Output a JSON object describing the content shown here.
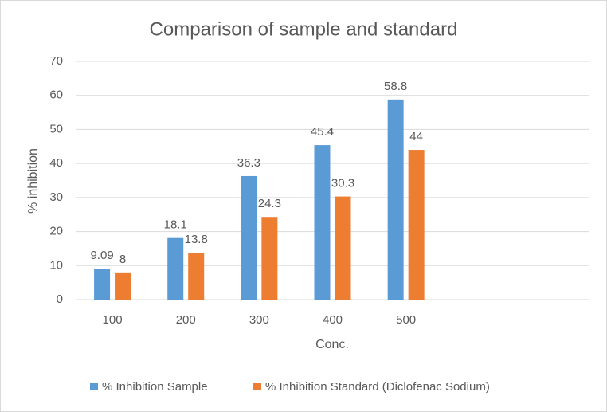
{
  "chart_data": {
    "type": "bar",
    "title": "Comparison of sample and standard",
    "x_label": "Conc.",
    "y_label": "% inhibition",
    "categories": [
      "100",
      "200",
      "300",
      "400",
      "500",
      null,
      null
    ],
    "series": [
      {
        "name": "% Inhibition Sample",
        "color": "#5b9bd5",
        "values": [
          9.09,
          18.1,
          36.3,
          45.4,
          58.8,
          null,
          null
        ]
      },
      {
        "name": "% Inhibition Standard (Diclofenac Sodium)",
        "color": "#ed7d31",
        "values": [
          8,
          13.8,
          24.3,
          30.3,
          44,
          null,
          null
        ]
      }
    ],
    "ylim": [
      0,
      70
    ],
    "yticks": [
      0,
      10,
      20,
      30,
      40,
      50,
      60,
      70
    ],
    "grid": true,
    "legend": "bottom"
  }
}
